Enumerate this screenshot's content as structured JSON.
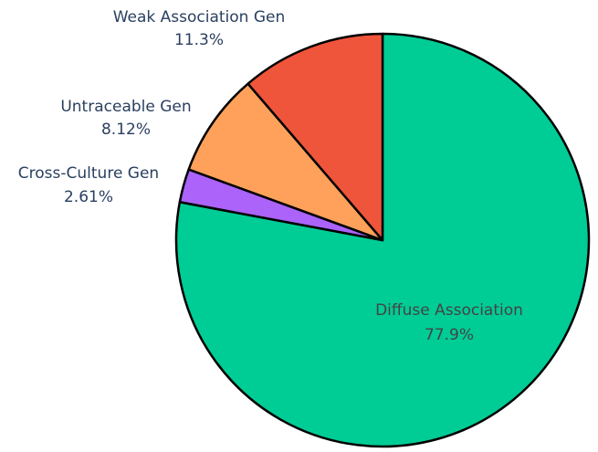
{
  "chart_data": {
    "type": "pie",
    "title": "",
    "start_angle_deg": 90,
    "direction": "clockwise",
    "slices": [
      {
        "label": "Diffuse Association",
        "percent_label": "77.9%",
        "value": 77.9,
        "color": "#00CC96",
        "text_color": "#444444",
        "text_position": "inside"
      },
      {
        "label": "Cross-Culture Gen",
        "percent_label": "2.61%",
        "value": 2.61,
        "color": "#AB63FA",
        "text_color": "#2A3F5F",
        "text_position": "outside"
      },
      {
        "label": "Untraceable Gen",
        "percent_label": "8.12%",
        "value": 8.12,
        "color": "#FFA15A",
        "text_color": "#2A3F5F",
        "text_position": "outside"
      },
      {
        "label": "Weak Association Gen",
        "percent_label": "11.3%",
        "value": 11.3,
        "color": "#EF553B",
        "text_color": "#2A3F5F",
        "text_position": "outside"
      }
    ]
  }
}
